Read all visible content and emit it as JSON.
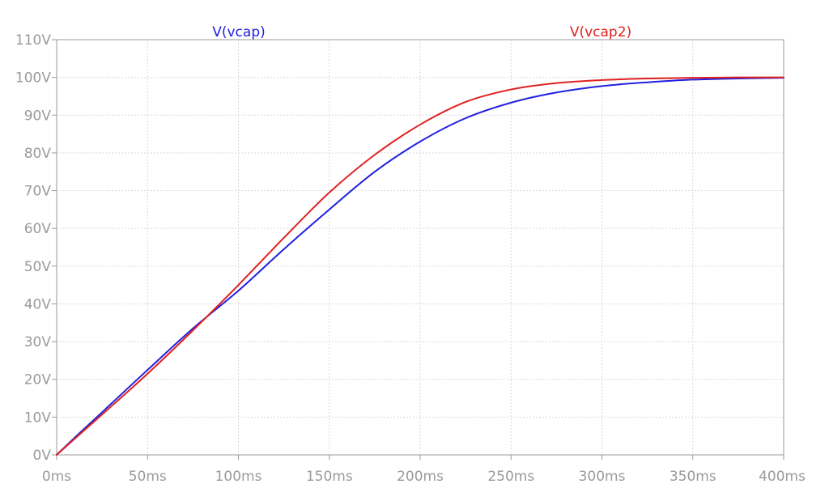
{
  "chart_data": {
    "type": "line",
    "x_unit": "ms",
    "y_unit": "V",
    "xlim": [
      0,
      400
    ],
    "ylim": [
      0,
      110
    ],
    "x_ticks": [
      0,
      50,
      100,
      150,
      200,
      250,
      300,
      350,
      400
    ],
    "y_ticks": [
      0,
      10,
      20,
      30,
      40,
      50,
      60,
      70,
      80,
      90,
      100,
      110
    ],
    "x_tick_labels": [
      "0ms",
      "50ms",
      "100ms",
      "150ms",
      "200ms",
      "250ms",
      "300ms",
      "350ms",
      "400ms"
    ],
    "y_tick_labels": [
      "0V",
      "10V",
      "20V",
      "30V",
      "40V",
      "50V",
      "60V",
      "70V",
      "80V",
      "90V",
      "100V",
      "110V"
    ],
    "grid": true,
    "legend_placement": "top",
    "series": [
      {
        "name": "V(vcap)",
        "color": "#2020e0",
        "x": [
          0,
          10,
          25,
          50,
          75,
          100,
          125,
          150,
          175,
          200,
          225,
          250,
          275,
          300,
          325,
          350,
          375,
          400
        ],
        "values": [
          0,
          4.6,
          11.3,
          22.5,
          33.5,
          43.5,
          54.5,
          65,
          75,
          83,
          89.2,
          93.3,
          96,
          97.7,
          98.7,
          99.4,
          99.7,
          99.9
        ]
      },
      {
        "name": "V(vcap2)",
        "color": "#e02020",
        "x": [
          0,
          10,
          25,
          50,
          75,
          100,
          125,
          150,
          175,
          200,
          225,
          250,
          275,
          300,
          325,
          350,
          375,
          400
        ],
        "values": [
          0,
          4.3,
          10.7,
          21.5,
          33,
          45,
          57.5,
          69.5,
          79.5,
          87.5,
          93.5,
          96.8,
          98.5,
          99.3,
          99.7,
          99.9,
          100,
          100
        ]
      }
    ]
  }
}
